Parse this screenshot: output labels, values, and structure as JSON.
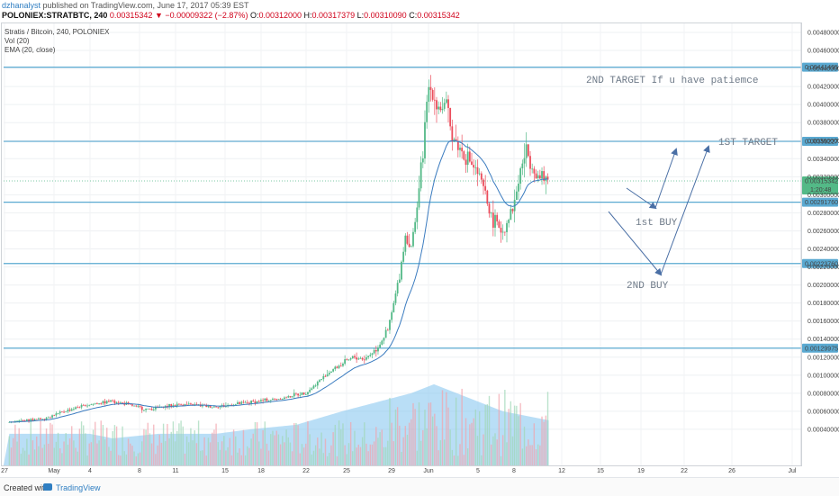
{
  "header": {
    "username": "dzhanalyst",
    "published_text": " published on TradingView.com, June 17, 2017 05:39 EST",
    "symbol": "POLONIEX:STRATBTC, 240",
    "open_label": "O:",
    "open": "0.00312000",
    "high_label": "H:",
    "high": "0.00317379",
    "low_label": "L:",
    "low": "0.00310090",
    "close_label": "C:",
    "close": "0.00315342",
    "last": "0.00315342",
    "change": "▼ −0.00009322 (−2.87%)"
  },
  "legend": {
    "line1": "Stratis / Bitcoin, 240, POLONIEX",
    "line2": "Vol (20)",
    "line3": "EMA (20, close)"
  },
  "annotations": {
    "target2": "2ND TARGET If u have patiemce",
    "target1": "1ST TARGET",
    "buy1": "1st BUY",
    "buy2": "2ND BUY"
  },
  "colors": {
    "up": "#53b987",
    "down": "#eb4d5c",
    "ema": "#3a7bbf",
    "hline": "#5aa9d1",
    "volume_area": "#7fc3ef",
    "arrow": "#4a6fa5"
  },
  "chart_data": {
    "type": "candlestick",
    "symbol": "Stratis / Bitcoin, 240, POLONIEX",
    "y_axis_range": [
      0.0,
      0.0049
    ],
    "y_ticks": [
      "0.00040000",
      "0.00060000",
      "0.00080000",
      "0.00100000",
      "0.00120000",
      "0.00140000",
      "0.00160000",
      "0.00180000",
      "0.00200000",
      "0.00220000",
      "0.00240000",
      "0.00260000",
      "0.00280000",
      "0.00300000",
      "0.00320000",
      "0.00340000",
      "0.00360000",
      "0.00380000",
      "0.00400000",
      "0.00420000",
      "0.00440000",
      "0.00460000",
      "0.00480000"
    ],
    "x_ticks": [
      "27",
      "May",
      "4",
      "8",
      "11",
      "15",
      "18",
      "22",
      "25",
      "29",
      "Jun",
      "5",
      "8",
      "12",
      "15",
      "19",
      "22",
      "26",
      "Jul"
    ],
    "horizontal_levels": [
      {
        "label": "0.00441495",
        "value": 0.00441495
      },
      {
        "label": "0.00359227",
        "value": 0.00359227
      },
      {
        "label": "0.00291760",
        "value": 0.0029176
      },
      {
        "label": "0.00223760",
        "value": 0.0022376
      },
      {
        "label": "0.00129975",
        "value": 0.00129975
      }
    ],
    "price_badge": {
      "label": "0.00315342",
      "countdown": "1:20:48"
    },
    "price_points": [
      [
        27.0,
        0.00048
      ],
      [
        30.0,
        0.00052
      ],
      [
        33.0,
        0.00065
      ],
      [
        36.0,
        0.00072
      ],
      [
        39.0,
        0.00062
      ],
      [
        42.0,
        0.00068
      ],
      [
        45.0,
        0.00065
      ],
      [
        48.0,
        0.0007
      ],
      [
        51.0,
        0.00075
      ],
      [
        53.0,
        0.00082
      ],
      [
        55.0,
        0.00105
      ],
      [
        57.0,
        0.0012
      ],
      [
        58.0,
        0.00118
      ],
      [
        59.0,
        0.0013
      ],
      [
        60.0,
        0.0015
      ],
      [
        61.0,
        0.0021
      ],
      [
        61.5,
        0.00255
      ],
      [
        62.0,
        0.0024
      ],
      [
        62.5,
        0.00285
      ],
      [
        63.0,
        0.0034
      ],
      [
        63.5,
        0.0042
      ],
      [
        64.0,
        0.0041
      ],
      [
        64.5,
        0.00395
      ],
      [
        65.0,
        0.004
      ],
      [
        65.5,
        0.0037
      ],
      [
        66.0,
        0.00355
      ],
      [
        67.0,
        0.0034
      ],
      [
        68.0,
        0.0032
      ],
      [
        69.0,
        0.00275
      ],
      [
        70.0,
        0.0026
      ],
      [
        71.0,
        0.0029
      ],
      [
        71.5,
        0.00325
      ],
      [
        72.0,
        0.0035
      ],
      [
        73.0,
        0.0032
      ],
      [
        74.0,
        0.00315
      ]
    ],
    "volume_area_points": [
      [
        27.0,
        0.00035
      ],
      [
        34.0,
        0.00035
      ],
      [
        36.0,
        0.0003
      ],
      [
        40.0,
        0.00035
      ],
      [
        45.0,
        0.00035
      ],
      [
        48.0,
        0.0004
      ],
      [
        52.0,
        0.00045
      ],
      [
        56.0,
        0.0006
      ],
      [
        59.0,
        0.0007
      ],
      [
        62.0,
        0.0008
      ],
      [
        64.0,
        0.0009
      ],
      [
        66.0,
        0.0008
      ],
      [
        68.0,
        0.0007
      ],
      [
        70.0,
        0.0006
      ],
      [
        72.0,
        0.00055
      ],
      [
        74.0,
        0.0005
      ]
    ]
  },
  "footer": {
    "created_with": "Created with",
    "brand": "TradingView"
  }
}
